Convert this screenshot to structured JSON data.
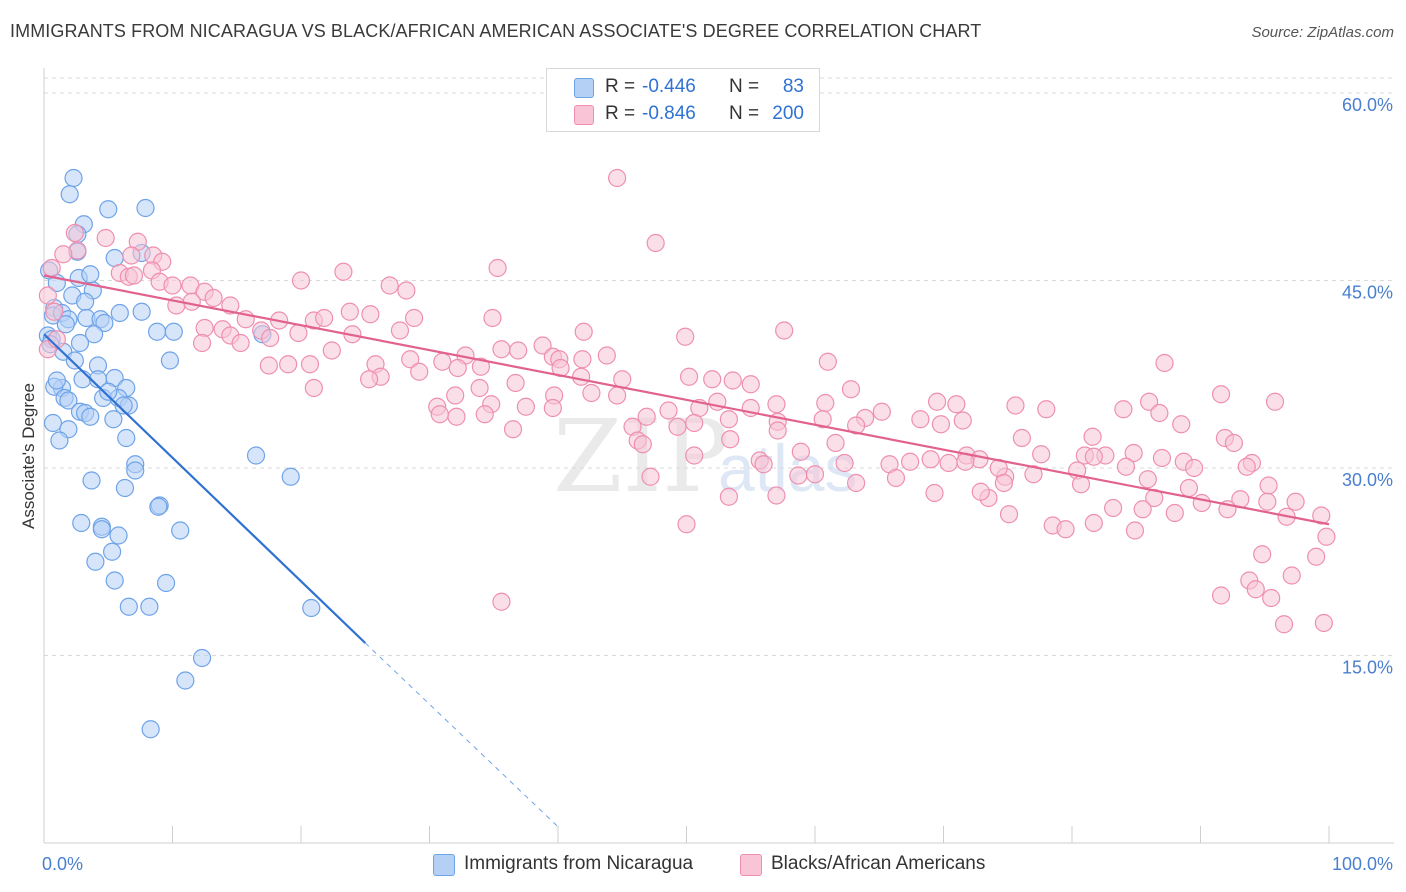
{
  "title": "IMMIGRANTS FROM NICARAGUA VS BLACK/AFRICAN AMERICAN ASSOCIATE'S DEGREE CORRELATION CHART",
  "source": "Source: ZipAtlas.com",
  "watermark": {
    "zip": "ZIP",
    "atlas": "atlas"
  },
  "colors": {
    "blue": "#6ea3e8",
    "blue_fill": "#b4d0f5",
    "blue_line": "#2f72d2",
    "pink": "#ee8fb0",
    "pink_fill": "#f8c4d6",
    "pink_line": "#e2628f",
    "axis_text": "#4a7fcf",
    "grid": "#d9d9d9"
  },
  "legend": {
    "rows": [
      {
        "r_label": "R =",
        "r_value": "-0.446",
        "n_label": "N =",
        "n_value": "83",
        "series": "blue"
      },
      {
        "r_label": "R =",
        "r_value": "-0.846",
        "n_label": "N =",
        "n_value": "200",
        "series": "pink"
      }
    ]
  },
  "bottom_legend": [
    {
      "label": "Immigrants from Nicaragua",
      "series": "blue"
    },
    {
      "label": "Blacks/African Americans",
      "series": "pink"
    }
  ],
  "chart_data": {
    "type": "scatter",
    "title": "IMMIGRANTS FROM NICARAGUA VS BLACK/AFRICAN AMERICAN ASSOCIATE'S DEGREE CORRELATION CHART",
    "xlabel": "",
    "ylabel": "Associate's Degree",
    "xlim": [
      0,
      100
    ],
    "ylim": [
      0,
      62
    ],
    "x_tick_labels": [
      {
        "value": 0,
        "label": "0.0%"
      },
      {
        "value": 100,
        "label": "100.0%"
      }
    ],
    "y_tick_labels": [
      {
        "value": 15,
        "label": "15.0%"
      },
      {
        "value": 30,
        "label": "30.0%"
      },
      {
        "value": 45,
        "label": "45.0%"
      },
      {
        "value": 60,
        "label": "60.0%"
      }
    ],
    "series": [
      {
        "name": "Immigrants from Nicaragua",
        "color": "blue",
        "trend": {
          "x0": 0,
          "y0": 40.7,
          "x1": 25.0,
          "y1": 16.0,
          "dash_to_x": 40.0,
          "dash_to_y": 1.3
        },
        "points": [
          [
            2.3,
            53.2
          ],
          [
            7.9,
            50.8
          ],
          [
            2.0,
            51.9
          ],
          [
            5.0,
            50.7
          ],
          [
            3.1,
            49.5
          ],
          [
            2.6,
            48.7
          ],
          [
            7.6,
            47.2
          ],
          [
            5.5,
            46.8
          ],
          [
            0.4,
            45.8
          ],
          [
            2.6,
            47.3
          ],
          [
            2.7,
            45.2
          ],
          [
            1.0,
            44.8
          ],
          [
            3.8,
            44.2
          ],
          [
            0.8,
            42.8
          ],
          [
            2.2,
            43.8
          ],
          [
            3.2,
            43.3
          ],
          [
            0.7,
            42.2
          ],
          [
            1.4,
            42.4
          ],
          [
            1.9,
            41.9
          ],
          [
            3.3,
            42.0
          ],
          [
            4.4,
            41.9
          ],
          [
            4.7,
            41.6
          ],
          [
            5.9,
            42.4
          ],
          [
            7.6,
            42.5
          ],
          [
            3.9,
            40.7
          ],
          [
            0.3,
            40.6
          ],
          [
            0.6,
            40.3
          ],
          [
            1.5,
            39.3
          ],
          [
            2.8,
            40.0
          ],
          [
            8.8,
            40.9
          ],
          [
            10.1,
            40.9
          ],
          [
            17.0,
            40.7
          ],
          [
            9.8,
            38.6
          ],
          [
            4.2,
            38.2
          ],
          [
            3.0,
            37.1
          ],
          [
            4.2,
            37.1
          ],
          [
            5.5,
            37.2
          ],
          [
            1.4,
            36.4
          ],
          [
            0.8,
            36.5
          ],
          [
            6.4,
            36.4
          ],
          [
            1.6,
            35.6
          ],
          [
            1.9,
            35.4
          ],
          [
            4.6,
            35.6
          ],
          [
            5.8,
            35.6
          ],
          [
            6.6,
            35.0
          ],
          [
            2.8,
            34.5
          ],
          [
            3.2,
            34.4
          ],
          [
            3.6,
            34.1
          ],
          [
            5.4,
            33.9
          ],
          [
            0.7,
            33.6
          ],
          [
            1.9,
            33.1
          ],
          [
            6.4,
            32.4
          ],
          [
            1.2,
            32.2
          ],
          [
            16.5,
            31.0
          ],
          [
            7.1,
            30.3
          ],
          [
            7.1,
            29.8
          ],
          [
            19.2,
            29.3
          ],
          [
            3.7,
            29.0
          ],
          [
            6.3,
            28.4
          ],
          [
            9.0,
            27.0
          ],
          [
            8.9,
            26.9
          ],
          [
            2.9,
            25.6
          ],
          [
            4.5,
            25.3
          ],
          [
            4.5,
            25.1
          ],
          [
            10.6,
            25.0
          ],
          [
            5.8,
            24.6
          ],
          [
            5.3,
            23.3
          ],
          [
            4.0,
            22.5
          ],
          [
            9.5,
            20.8
          ],
          [
            5.5,
            21.0
          ],
          [
            6.6,
            18.9
          ],
          [
            8.2,
            18.9
          ],
          [
            20.8,
            18.8
          ],
          [
            12.3,
            14.8
          ],
          [
            11.0,
            13.0
          ],
          [
            8.3,
            9.1
          ],
          [
            0.5,
            39.9
          ],
          [
            1.0,
            37.0
          ],
          [
            2.4,
            38.6
          ],
          [
            5.0,
            36.1
          ],
          [
            1.7,
            41.5
          ],
          [
            3.6,
            45.5
          ],
          [
            6.2,
            35.0
          ]
        ]
      },
      {
        "name": "Blacks/African Americans",
        "color": "pink",
        "trend": {
          "x0": 0,
          "y0": 45.4,
          "x1": 100,
          "y1": 25.5
        },
        "points": [
          [
            44.6,
            53.2
          ],
          [
            47.6,
            48.0
          ],
          [
            35.3,
            46.0
          ],
          [
            2.4,
            48.8
          ],
          [
            4.8,
            48.4
          ],
          [
            7.3,
            48.1
          ],
          [
            2.6,
            47.4
          ],
          [
            1.5,
            47.1
          ],
          [
            6.8,
            47.0
          ],
          [
            8.5,
            47.0
          ],
          [
            9.2,
            46.5
          ],
          [
            0.6,
            46.0
          ],
          [
            5.9,
            45.6
          ],
          [
            8.4,
            45.8
          ],
          [
            23.3,
            45.7
          ],
          [
            20.0,
            45.0
          ],
          [
            6.6,
            45.3
          ],
          [
            7.0,
            45.4
          ],
          [
            9.0,
            44.9
          ],
          [
            10.0,
            44.6
          ],
          [
            11.4,
            44.6
          ],
          [
            26.9,
            44.6
          ],
          [
            28.2,
            44.2
          ],
          [
            12.5,
            44.1
          ],
          [
            13.2,
            43.6
          ],
          [
            11.5,
            43.3
          ],
          [
            14.5,
            43.0
          ],
          [
            10.3,
            43.0
          ],
          [
            0.3,
            43.8
          ],
          [
            0.8,
            42.5
          ],
          [
            23.8,
            42.5
          ],
          [
            25.4,
            42.3
          ],
          [
            15.7,
            41.9
          ],
          [
            18.3,
            41.8
          ],
          [
            21.0,
            41.8
          ],
          [
            21.8,
            42.0
          ],
          [
            28.8,
            42.0
          ],
          [
            13.9,
            41.1
          ],
          [
            12.5,
            41.2
          ],
          [
            16.9,
            41.0
          ],
          [
            14.5,
            40.6
          ],
          [
            19.8,
            40.8
          ],
          [
            24.0,
            40.7
          ],
          [
            27.7,
            41.0
          ],
          [
            34.9,
            42.0
          ],
          [
            49.9,
            40.5
          ],
          [
            42.0,
            40.9
          ],
          [
            57.6,
            41.0
          ],
          [
            15.3,
            40.0
          ],
          [
            17.6,
            40.4
          ],
          [
            0.3,
            39.5
          ],
          [
            1.0,
            40.3
          ],
          [
            12.3,
            40.0
          ],
          [
            22.4,
            39.4
          ],
          [
            32.8,
            39.0
          ],
          [
            35.6,
            39.5
          ],
          [
            36.9,
            39.4
          ],
          [
            38.8,
            39.8
          ],
          [
            28.5,
            38.7
          ],
          [
            31.0,
            38.5
          ],
          [
            39.6,
            38.9
          ],
          [
            40.1,
            38.7
          ],
          [
            41.9,
            38.7
          ],
          [
            43.8,
            39.0
          ],
          [
            61.0,
            38.5
          ],
          [
            87.2,
            38.4
          ],
          [
            17.5,
            38.2
          ],
          [
            20.7,
            38.3
          ],
          [
            19.0,
            38.3
          ],
          [
            25.8,
            38.3
          ],
          [
            32.2,
            38.0
          ],
          [
            34.0,
            38.1
          ],
          [
            40.2,
            38.0
          ],
          [
            29.2,
            37.7
          ],
          [
            26.2,
            37.3
          ],
          [
            25.3,
            37.1
          ],
          [
            36.7,
            36.8
          ],
          [
            41.8,
            37.3
          ],
          [
            45.0,
            37.1
          ],
          [
            50.2,
            37.3
          ],
          [
            52.0,
            37.1
          ],
          [
            53.6,
            37.0
          ],
          [
            55.0,
            36.7
          ],
          [
            62.8,
            36.3
          ],
          [
            21.0,
            36.4
          ],
          [
            33.9,
            36.4
          ],
          [
            42.6,
            36.0
          ],
          [
            32.0,
            35.8
          ],
          [
            39.7,
            35.8
          ],
          [
            44.6,
            35.8
          ],
          [
            52.4,
            35.3
          ],
          [
            57.0,
            35.1
          ],
          [
            60.8,
            35.2
          ],
          [
            69.5,
            35.3
          ],
          [
            71.0,
            35.1
          ],
          [
            75.6,
            35.0
          ],
          [
            86.0,
            35.3
          ],
          [
            95.8,
            35.3
          ],
          [
            91.6,
            35.9
          ],
          [
            34.8,
            35.1
          ],
          [
            37.5,
            34.9
          ],
          [
            30.6,
            34.9
          ],
          [
            39.6,
            34.8
          ],
          [
            48.6,
            34.6
          ],
          [
            51.0,
            34.8
          ],
          [
            55.0,
            34.8
          ],
          [
            65.2,
            34.5
          ],
          [
            78.0,
            34.7
          ],
          [
            84.0,
            34.7
          ],
          [
            86.8,
            34.4
          ],
          [
            30.8,
            34.3
          ],
          [
            32.1,
            34.1
          ],
          [
            34.3,
            34.3
          ],
          [
            46.9,
            34.1
          ],
          [
            53.3,
            33.9
          ],
          [
            57.1,
            33.7
          ],
          [
            60.6,
            33.9
          ],
          [
            68.2,
            33.9
          ],
          [
            71.5,
            33.8
          ],
          [
            63.9,
            34.0
          ],
          [
            36.5,
            33.1
          ],
          [
            45.8,
            33.3
          ],
          [
            49.3,
            33.3
          ],
          [
            50.6,
            33.6
          ],
          [
            57.1,
            33.0
          ],
          [
            63.2,
            33.4
          ],
          [
            69.8,
            33.5
          ],
          [
            88.5,
            33.5
          ],
          [
            46.2,
            32.2
          ],
          [
            53.4,
            32.3
          ],
          [
            46.6,
            31.9
          ],
          [
            61.6,
            32.0
          ],
          [
            76.1,
            32.4
          ],
          [
            81.6,
            32.5
          ],
          [
            91.9,
            32.4
          ],
          [
            92.6,
            32.0
          ],
          [
            58.9,
            31.3
          ],
          [
            69.0,
            30.7
          ],
          [
            71.8,
            31.0
          ],
          [
            81.0,
            31.0
          ],
          [
            82.6,
            31.0
          ],
          [
            84.8,
            31.2
          ],
          [
            87.0,
            30.8
          ],
          [
            88.7,
            30.5
          ],
          [
            81.7,
            30.9
          ],
          [
            77.6,
            31.1
          ],
          [
            72.8,
            30.7
          ],
          [
            71.7,
            30.5
          ],
          [
            67.4,
            30.5
          ],
          [
            55.7,
            30.6
          ],
          [
            56.0,
            30.3
          ],
          [
            50.6,
            31.0
          ],
          [
            62.3,
            30.4
          ],
          [
            65.8,
            30.3
          ],
          [
            77.0,
            29.5
          ],
          [
            80.4,
            29.8
          ],
          [
            74.8,
            29.3
          ],
          [
            74.3,
            30.0
          ],
          [
            70.4,
            30.4
          ],
          [
            84.2,
            30.1
          ],
          [
            89.5,
            30.0
          ],
          [
            94.0,
            30.4
          ],
          [
            93.6,
            30.1
          ],
          [
            58.7,
            29.4
          ],
          [
            60.0,
            29.5
          ],
          [
            63.2,
            28.8
          ],
          [
            66.3,
            29.2
          ],
          [
            74.7,
            28.8
          ],
          [
            80.7,
            28.7
          ],
          [
            85.9,
            29.1
          ],
          [
            89.1,
            28.4
          ],
          [
            95.3,
            28.6
          ],
          [
            47.2,
            29.3
          ],
          [
            53.3,
            27.7
          ],
          [
            57.0,
            27.8
          ],
          [
            69.3,
            28.0
          ],
          [
            73.5,
            27.6
          ],
          [
            72.9,
            28.1
          ],
          [
            86.4,
            27.6
          ],
          [
            93.1,
            27.5
          ],
          [
            95.2,
            27.3
          ],
          [
            90.1,
            27.2
          ],
          [
            92.1,
            26.7
          ],
          [
            97.4,
            27.3
          ],
          [
            88.0,
            26.4
          ],
          [
            83.2,
            26.8
          ],
          [
            75.1,
            26.3
          ],
          [
            85.5,
            26.7
          ],
          [
            96.7,
            26.1
          ],
          [
            99.4,
            26.2
          ],
          [
            99.8,
            24.5
          ],
          [
            50.0,
            25.5
          ],
          [
            78.5,
            25.4
          ],
          [
            81.7,
            25.6
          ],
          [
            79.5,
            25.1
          ],
          [
            84.9,
            25.0
          ],
          [
            94.8,
            23.1
          ],
          [
            97.1,
            21.4
          ],
          [
            93.8,
            21.0
          ],
          [
            99.0,
            22.9
          ],
          [
            94.3,
            20.3
          ],
          [
            91.6,
            19.8
          ],
          [
            95.5,
            19.6
          ],
          [
            96.5,
            17.5
          ],
          [
            99.6,
            17.6
          ],
          [
            35.6,
            19.3
          ]
        ]
      }
    ]
  }
}
